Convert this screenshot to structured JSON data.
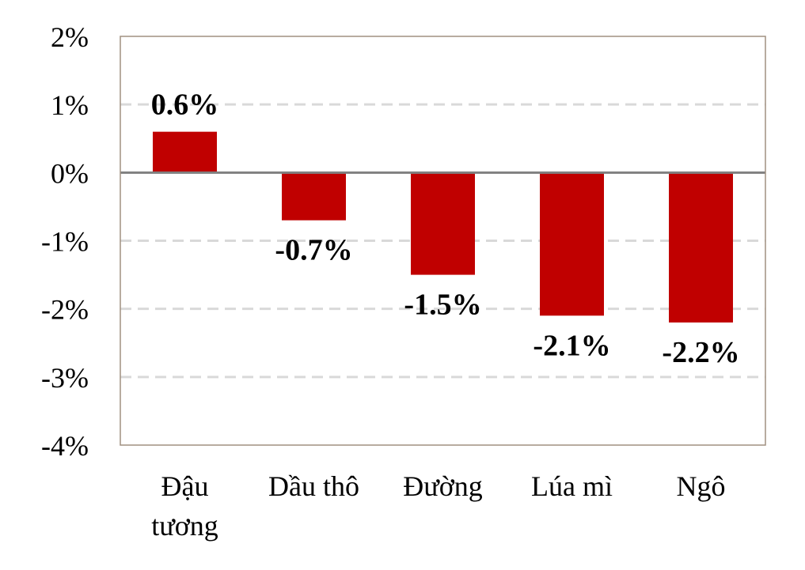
{
  "chart_data": {
    "type": "bar",
    "categories": [
      [
        "Đậu",
        "tương"
      ],
      [
        "Dầu thô"
      ],
      [
        "Đường"
      ],
      [
        "Lúa mì"
      ],
      [
        "Ngô"
      ]
    ],
    "values": [
      0.6,
      -0.7,
      -1.5,
      -2.1,
      -2.2
    ],
    "data_labels": [
      "0.6%",
      "-0.7%",
      "-1.5%",
      "-2.1%",
      "-2.2%"
    ],
    "y_ticks": [
      {
        "value": 2,
        "label": "2%"
      },
      {
        "value": 1,
        "label": "1%"
      },
      {
        "value": 0,
        "label": "0%"
      },
      {
        "value": -1,
        "label": "-1%"
      },
      {
        "value": -2,
        "label": "-2%"
      },
      {
        "value": -3,
        "label": "-3%"
      },
      {
        "value": -4,
        "label": "-4%"
      }
    ],
    "ylim": [
      -4,
      2
    ],
    "grid": true,
    "bar_color": "#c00000",
    "grid_color": "#d9d9d9",
    "zero_line_color": "#808080",
    "frame_color": "#a09080"
  }
}
